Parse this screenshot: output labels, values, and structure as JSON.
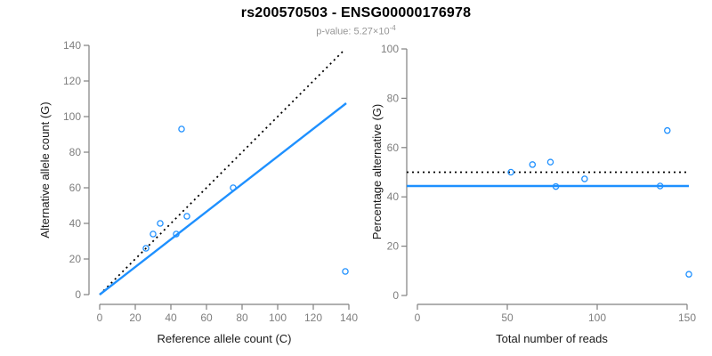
{
  "header": {
    "title": "rs200570503 - ENSG00000176978",
    "subtitle_base": "p-value: 5.27×10",
    "subtitle_exponent": "-4"
  },
  "colors": {
    "accent_blue": "#1E90FF",
    "axis_gray": "#808080",
    "tick_label_gray": "#7e7e7e",
    "dotted_black": "#000000",
    "subtitle_gray": "#969696"
  },
  "chart_data": [
    {
      "type": "scatter",
      "title": "",
      "xlabel": "Reference allele count (C)",
      "ylabel": "Alternative allele count (G)",
      "xlim": [
        0,
        140
      ],
      "ylim": [
        0,
        140
      ],
      "xticks": [
        0,
        20,
        40,
        60,
        80,
        100,
        120,
        140
      ],
      "yticks": [
        0,
        20,
        40,
        60,
        80,
        100,
        120,
        140
      ],
      "grid": false,
      "legend": false,
      "point_style": "open-circle",
      "point_color": "#1E90FF",
      "points": [
        [
          26,
          26
        ],
        [
          30,
          34
        ],
        [
          34,
          40
        ],
        [
          43,
          34
        ],
        [
          46,
          93
        ],
        [
          49,
          44
        ],
        [
          75,
          60
        ],
        [
          138,
          13
        ]
      ],
      "lines": [
        {
          "name": "identity-line",
          "kind": "segment",
          "from": [
            0,
            0
          ],
          "to": [
            137.5,
            137.5
          ],
          "style": "dotted",
          "color": "#000000"
        },
        {
          "name": "fit-line",
          "kind": "segment",
          "from": [
            0,
            0
          ],
          "to": [
            138.5,
            107.5
          ],
          "style": "solid",
          "color": "#1E90FF"
        }
      ]
    },
    {
      "type": "scatter",
      "title": "",
      "xlabel": "Total number of reads",
      "ylabel": "Percentage alternative (G)",
      "xlim": [
        0,
        150
      ],
      "ylim": [
        0,
        100
      ],
      "xticks": [
        0,
        50,
        100,
        150
      ],
      "yticks": [
        0,
        20,
        40,
        60,
        80,
        100
      ],
      "grid": false,
      "legend": false,
      "point_style": "open-circle",
      "point_color": "#1E90FF",
      "points": [
        [
          52,
          50
        ],
        [
          64,
          53.1
        ],
        [
          74,
          54.1
        ],
        [
          77,
          44.2
        ],
        [
          93,
          47.3
        ],
        [
          135,
          44.4
        ],
        [
          139,
          66.9
        ],
        [
          151,
          8.6
        ]
      ],
      "lines": [
        {
          "name": "null-line",
          "kind": "hline",
          "y": 50,
          "style": "dotted",
          "color": "#000000"
        },
        {
          "name": "fit-line",
          "kind": "hline",
          "y": 44.4,
          "style": "solid",
          "color": "#1E90FF"
        }
      ]
    }
  ]
}
